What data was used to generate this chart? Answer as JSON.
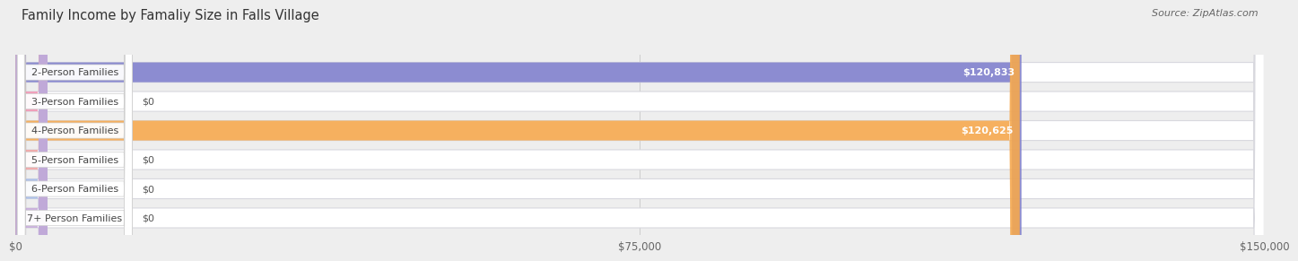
{
  "title": "Family Income by Famaliy Size in Falls Village",
  "source": "Source: ZipAtlas.com",
  "categories": [
    "2-Person Families",
    "3-Person Families",
    "4-Person Families",
    "5-Person Families",
    "6-Person Families",
    "7+ Person Families"
  ],
  "values": [
    120833,
    0,
    120625,
    0,
    0,
    0
  ],
  "bar_colors": [
    "#8080cc",
    "#f090b0",
    "#f5a84e",
    "#f0a0a0",
    "#a0b8e8",
    "#c4a8d8"
  ],
  "value_labels": [
    "$120,833",
    "$0",
    "$120,625",
    "$0",
    "$0",
    "$0"
  ],
  "xlim": [
    0,
    150000
  ],
  "xticks": [
    0,
    75000,
    150000
  ],
  "xtick_labels": [
    "$0",
    "$75,000",
    "$150,000"
  ],
  "bg_color": "#eeeeee",
  "row_bg_color": "#f8f8fa",
  "title_fontsize": 10.5,
  "source_fontsize": 8,
  "label_fontsize": 8,
  "value_fontsize": 8
}
